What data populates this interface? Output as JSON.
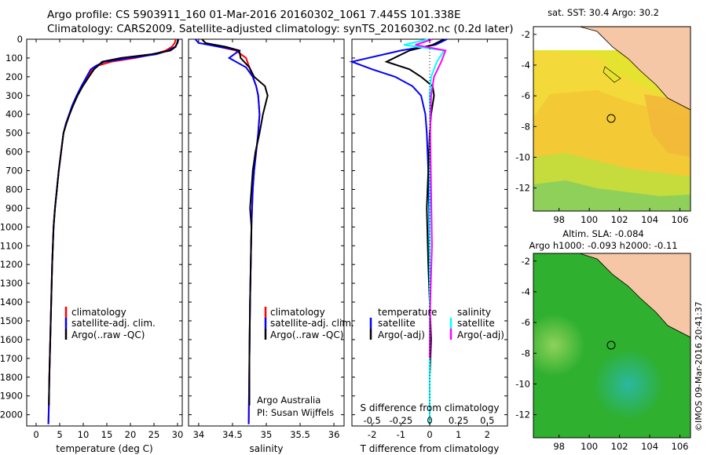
{
  "header": {
    "title_line1": "Argo profile: CS 5903911_160 01-Mar-2016 20160302_1061 7.445S 101.338E",
    "title_line2": "Climatology: CARS2009. Satellite-adjusted climatology: synTS_20160302.nc (0.2d later)"
  },
  "depth_axis": {
    "ticks": [
      0,
      100,
      200,
      300,
      400,
      500,
      600,
      700,
      800,
      900,
      1000,
      1100,
      1200,
      1300,
      1400,
      1500,
      1600,
      1700,
      1800,
      1900,
      2000
    ],
    "range": [
      0,
      2060
    ]
  },
  "colors": {
    "climatology": "#ff0000",
    "satellite": "#0000ff",
    "argo": "#000000",
    "s_satellite": "#00ffff",
    "s_argo": "#ff00ff",
    "land": "#f6c7a6",
    "ocean_green": "#2fb02f"
  },
  "panels": {
    "temperature": {
      "xlabel": "temperature (deg C)",
      "xticks": [
        "0",
        "5",
        "10",
        "15",
        "20",
        "25",
        "30"
      ],
      "legend": [
        "climatology",
        "satellite-adj. clim.",
        "Argo(..raw -QC)"
      ]
    },
    "salinity": {
      "xlabel": "salinity",
      "xticks": [
        "34",
        "34.5",
        "35",
        "35.5",
        "36"
      ],
      "legend": [
        "climatology",
        "satellite-adj. clim.",
        "Argo(..raw -QC)"
      ],
      "note_line1": "Argo Australia",
      "note_line2": "PI: Susan Wijffels"
    },
    "difference": {
      "xlabel": "T difference from climatology",
      "s_label": "S difference from climatology",
      "t_ticks": [
        "-2",
        "-1",
        "0",
        "1",
        "2"
      ],
      "s_ticks": [
        "-0.5",
        "-0.25",
        "0",
        "0.25",
        "0.5"
      ],
      "legend_t_title": "temperature",
      "legend_s_title": "salinity",
      "legend_t": [
        "satellite",
        "Argo(-adj)"
      ],
      "legend_s": [
        "satellite",
        "Argo(-adj)"
      ]
    }
  },
  "maps": {
    "sst": {
      "title": "sat. SST: 30.4 Argo: 30.2",
      "xticks": [
        "98",
        "100",
        "102",
        "104",
        "106"
      ],
      "yticks": [
        "-2",
        "-4",
        "-6",
        "-8",
        "-10",
        "-12"
      ]
    },
    "sla": {
      "title_line1": "Altim. SLA: -0.084",
      "title_line2": "Argo h1000: -0.093 h2000: -0.11",
      "xticks": [
        "98",
        "100",
        "102",
        "104",
        "106"
      ],
      "yticks": [
        "-2",
        "-4",
        "-6",
        "-8",
        "-10",
        "-12"
      ]
    }
  },
  "credit": "©IMOS 09-Mar-2016 20:41:37",
  "chart_data": [
    {
      "type": "line",
      "title": "",
      "xlabel": "temperature (deg C)",
      "ylabel": "",
      "xlim": [
        -2,
        31
      ],
      "ylim": [
        2060,
        0
      ],
      "series": [
        {
          "name": "climatology",
          "x": [
            29.6,
            29.4,
            28.8,
            27.5,
            25,
            21,
            16,
            13.2,
            12,
            11,
            9.8,
            8.7,
            7.8,
            7.1,
            6.4,
            5.8,
            5.3,
            4.8,
            4.4,
            4.0,
            3.7,
            3.4,
            3.2,
            3.0,
            2.8,
            2.7,
            2.6
          ],
          "y": [
            0,
            20,
            40,
            60,
            80,
            100,
            120,
            140,
            160,
            200,
            250,
            300,
            350,
            400,
            450,
            500,
            600,
            700,
            800,
            900,
            1000,
            1200,
            1400,
            1600,
            1800,
            1950,
            2050
          ]
        },
        {
          "name": "satellite-adj. clim.",
          "x": [
            30.2,
            30,
            29.5,
            28,
            25.5,
            20,
            14.5,
            12.8,
            11.6,
            10.7,
            9.6,
            8.6,
            7.7,
            7.0,
            6.3,
            5.8,
            5.3,
            4.8,
            4.4,
            4.0,
            3.7,
            3.4,
            3.2,
            3.0,
            2.8,
            2.7,
            2.6
          ],
          "y": [
            0,
            20,
            40,
            60,
            80,
            100,
            120,
            140,
            160,
            200,
            250,
            300,
            350,
            400,
            450,
            500,
            600,
            700,
            800,
            900,
            1000,
            1200,
            1400,
            1600,
            1800,
            1950,
            2050
          ]
        },
        {
          "name": "Argo(..raw -QC)",
          "x": [
            30.1,
            29.9,
            29.6,
            28.5,
            24.5,
            18,
            14,
            13.2,
            12.3,
            11.2,
            9.9,
            8.8,
            7.9,
            7.1,
            6.4,
            5.8,
            5.3,
            4.8,
            4.4,
            4.0,
            3.7,
            3.4,
            3.2,
            3.0,
            2.8,
            2.7
          ],
          "y": [
            0,
            20,
            40,
            60,
            80,
            100,
            120,
            140,
            160,
            200,
            250,
            300,
            350,
            400,
            450,
            500,
            600,
            700,
            800,
            900,
            1000,
            1200,
            1400,
            1600,
            1800,
            1950
          ]
        }
      ]
    },
    {
      "type": "line",
      "title": "",
      "xlabel": "salinity",
      "ylabel": "",
      "xlim": [
        33.85,
        36.15
      ],
      "ylim": [
        2060,
        0
      ],
      "series": [
        {
          "name": "climatology",
          "x": [
            34.05,
            34.1,
            34.3,
            34.55,
            34.7,
            34.75,
            34.8,
            34.85,
            34.88,
            34.9,
            34.88,
            34.85,
            34.82,
            34.8,
            34.79,
            34.78,
            34.77,
            34.76,
            34.75,
            34.74
          ],
          "y": [
            0,
            20,
            40,
            60,
            100,
            150,
            200,
            250,
            300,
            400,
            500,
            600,
            700,
            800,
            900,
            1000,
            1200,
            1400,
            1700,
            2050
          ]
        },
        {
          "name": "satellite-adj. clim.",
          "x": [
            33.95,
            34.0,
            34.3,
            34.6,
            34.45,
            34.7,
            34.8,
            34.85,
            34.88,
            34.9,
            34.88,
            34.85,
            34.82,
            34.8,
            34.79,
            34.78,
            34.77,
            34.76,
            34.75,
            34.74
          ],
          "y": [
            0,
            20,
            40,
            60,
            100,
            150,
            200,
            250,
            300,
            400,
            500,
            600,
            700,
            800,
            900,
            1000,
            1200,
            1400,
            1700,
            2050
          ]
        },
        {
          "name": "Argo(..raw -QC)",
          "x": [
            34.05,
            34.1,
            34.4,
            34.6,
            34.62,
            34.75,
            34.82,
            34.98,
            35.02,
            34.95,
            34.9,
            34.84,
            34.8,
            34.78,
            34.76,
            34.78,
            34.77,
            34.76,
            34.75,
            34.75
          ],
          "y": [
            0,
            20,
            40,
            60,
            100,
            150,
            200,
            250,
            300,
            400,
            500,
            600,
            700,
            800,
            900,
            1000,
            1200,
            1400,
            1700,
            1950
          ]
        }
      ]
    },
    {
      "type": "line",
      "title": "",
      "xlabel": "T difference from climatology",
      "ylabel": "",
      "xlim": [
        -2.7,
        2.7
      ],
      "ylim": [
        2060,
        0
      ],
      "series": [
        {
          "name": "satellite",
          "x": [
            0.6,
            0.2,
            -1.0,
            -2.7,
            -2.0,
            -1.2,
            -0.6,
            -0.3,
            -0.15,
            -0.1,
            -0.05,
            -0.02,
            0,
            0
          ],
          "y": [
            0,
            30,
            60,
            120,
            160,
            200,
            250,
            300,
            400,
            500,
            700,
            900,
            1200,
            1700
          ]
        },
        {
          "name": "Argo(-adj)",
          "x": [
            0.5,
            0.1,
            -0.7,
            -1.5,
            -0.7,
            -0.3,
            0.1,
            0.15,
            0.05,
            0,
            -0.05,
            -0.1,
            -0.05,
            0.05,
            0.0
          ],
          "y": [
            0,
            30,
            60,
            120,
            160,
            200,
            250,
            300,
            400,
            500,
            700,
            900,
            1200,
            1600,
            1800
          ]
        },
        {
          "name": "S satellite",
          "x": [
            -0.05,
            -0.9,
            0.5,
            0.25,
            0.05,
            0,
            0.02,
            0,
            0,
            0
          ],
          "y": [
            0,
            30,
            60,
            120,
            200,
            300,
            500,
            800,
            1200,
            2050
          ]
        },
        {
          "name": "S Argo(-adj)",
          "x": [
            0.1,
            -0.5,
            0.55,
            0.4,
            0.15,
            0.05,
            0.02,
            0.05,
            0.08,
            0.02,
            0.0
          ],
          "y": [
            0,
            30,
            60,
            120,
            200,
            300,
            500,
            800,
            1100,
            1400,
            1700
          ]
        }
      ]
    }
  ]
}
